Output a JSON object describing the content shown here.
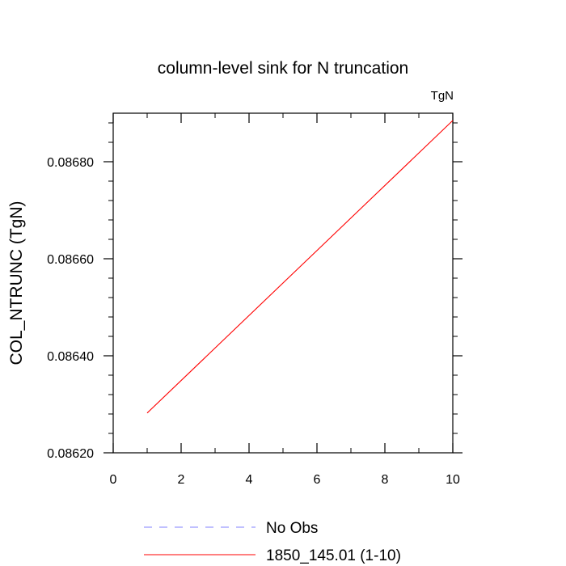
{
  "chart_data": {
    "type": "line",
    "title": "column-level sink for N truncation",
    "units_label": "TgN",
    "xlabel": "",
    "ylabel": "COL_NTRUNC  (TgN)",
    "xlim": [
      0,
      10
    ],
    "ylim": [
      0.0862,
      0.0869
    ],
    "x_ticks": [
      0,
      2,
      4,
      6,
      8,
      10
    ],
    "y_ticks": [
      0.0862,
      0.0864,
      0.0866,
      0.0868
    ],
    "y_tick_labels": [
      "0.08620",
      "0.08640",
      "0.08660",
      "0.08680"
    ],
    "grid": false,
    "legend_position": "bottom",
    "series": [
      {
        "name": "No Obs",
        "color": "#8080ff",
        "dash": "dashed",
        "x": [],
        "y": []
      },
      {
        "name": "1850_145.01 (1-10)",
        "color": "#ff0000",
        "dash": "solid",
        "x": [
          1,
          10
        ],
        "y": [
          0.086282,
          0.086885
        ]
      }
    ]
  }
}
